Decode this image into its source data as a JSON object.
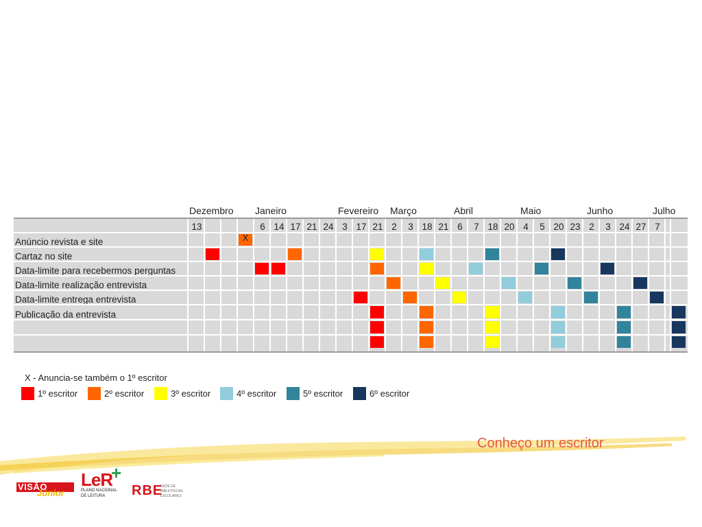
{
  "months": [
    "Dezembro",
    "Janeiro",
    "Fevereiro",
    "Março",
    "Abril",
    "Maio",
    "Junho",
    "Julho"
  ],
  "dates": [
    "13",
    "",
    "6",
    "14",
    "17",
    "21",
    "24",
    "3",
    "17",
    "21",
    "2",
    "3",
    "18",
    "21",
    "6",
    "7",
    "18",
    "20",
    "4",
    "5",
    "20",
    "23",
    "2",
    "3",
    "24",
    "27",
    "7"
  ],
  "rows": [
    "Anúncio revista e site",
    "Cartaz no site",
    "Data-limite para recebermos perguntas",
    "Data-limite realização entrevista",
    "Data-limite entrega entrevista",
    "Publicação da entrevista",
    "",
    ""
  ],
  "marks": [
    {
      "row": 0,
      "col": 3,
      "writer": 1,
      "label": "X"
    },
    {
      "row": 1,
      "col": 1,
      "writer": 0
    },
    {
      "row": 1,
      "col": 6,
      "writer": 1
    },
    {
      "row": 1,
      "col": 11,
      "writer": 2
    },
    {
      "row": 1,
      "col": 14,
      "writer": 3
    },
    {
      "row": 1,
      "col": 18,
      "writer": 4
    },
    {
      "row": 1,
      "col": 22,
      "writer": 5
    },
    {
      "row": 2,
      "col": 4,
      "writer": 0
    },
    {
      "row": 2,
      "col": 5,
      "writer": 0
    },
    {
      "row": 2,
      "col": 11,
      "writer": 1
    },
    {
      "row": 2,
      "col": 14,
      "writer": 2
    },
    {
      "row": 2,
      "col": 17,
      "writer": 3
    },
    {
      "row": 2,
      "col": 21,
      "writer": 4
    },
    {
      "row": 2,
      "col": 25,
      "writer": 5
    },
    {
      "row": 3,
      "col": 12,
      "writer": 1
    },
    {
      "row": 3,
      "col": 15,
      "writer": 2
    },
    {
      "row": 3,
      "col": 19,
      "writer": 3
    },
    {
      "row": 3,
      "col": 23,
      "writer": 4
    },
    {
      "row": 3,
      "col": 27,
      "writer": 5
    },
    {
      "row": 4,
      "col": 10,
      "writer": 0
    },
    {
      "row": 4,
      "col": 13,
      "writer": 1
    },
    {
      "row": 4,
      "col": 16,
      "writer": 2
    },
    {
      "row": 4,
      "col": 20,
      "writer": 3
    },
    {
      "row": 4,
      "col": 24,
      "writer": 4
    },
    {
      "row": 4,
      "col": 28,
      "writer": 5
    },
    {
      "row": 5,
      "col": 11,
      "writer": 0
    },
    {
      "row": 6,
      "col": 11,
      "writer": 0
    },
    {
      "row": 7,
      "col": 11,
      "writer": 0
    },
    {
      "row": 5,
      "col": 14,
      "writer": 1
    },
    {
      "row": 6,
      "col": 14,
      "writer": 1
    },
    {
      "row": 7,
      "col": 14,
      "writer": 1
    },
    {
      "row": 5,
      "col": 18,
      "writer": 2
    },
    {
      "row": 6,
      "col": 18,
      "writer": 2
    },
    {
      "row": 7,
      "col": 18,
      "writer": 2
    },
    {
      "row": 5,
      "col": 22,
      "writer": 3
    },
    {
      "row": 6,
      "col": 22,
      "writer": 3
    },
    {
      "row": 7,
      "col": 22,
      "writer": 3
    },
    {
      "row": 5,
      "col": 26,
      "writer": 4
    },
    {
      "row": 6,
      "col": 26,
      "writer": 4
    },
    {
      "row": 7,
      "col": 26,
      "writer": 4
    },
    {
      "row": 5,
      "col": 30,
      "writer": 5
    },
    {
      "row": 6,
      "col": 30,
      "writer": 5
    },
    {
      "row": 7,
      "col": 30,
      "writer": 5
    }
  ],
  "legend": {
    "note": "X - Anuncia-se também o 1º escritor",
    "items": [
      {
        "label": "1º escritor",
        "color": "#ff0000"
      },
      {
        "label": "2º escritor",
        "color": "#ff6600"
      },
      {
        "label": "3º escritor",
        "color": "#ffff00"
      },
      {
        "label": "4º escritor",
        "color": "#92cddc"
      },
      {
        "label": "5º escritor",
        "color": "#31849b"
      },
      {
        "label": "6º escritor",
        "color": "#17375e"
      }
    ]
  },
  "footer": {
    "title": "Conheço um escritor",
    "logo_visao": "VISÃO",
    "logo_junior": "Júnior",
    "logo_ler": "LeR",
    "logo_ler_plus": "+",
    "logo_ler_sub1": "PLANO NACIONAL",
    "logo_ler_sub2": "DE LEITURA",
    "logo_rbe": "RBE",
    "logo_rbe_sub1": "REDE DE",
    "logo_rbe_sub2": "BIBLIOTECAS",
    "logo_rbe_sub3": "ESCOLARES"
  }
}
